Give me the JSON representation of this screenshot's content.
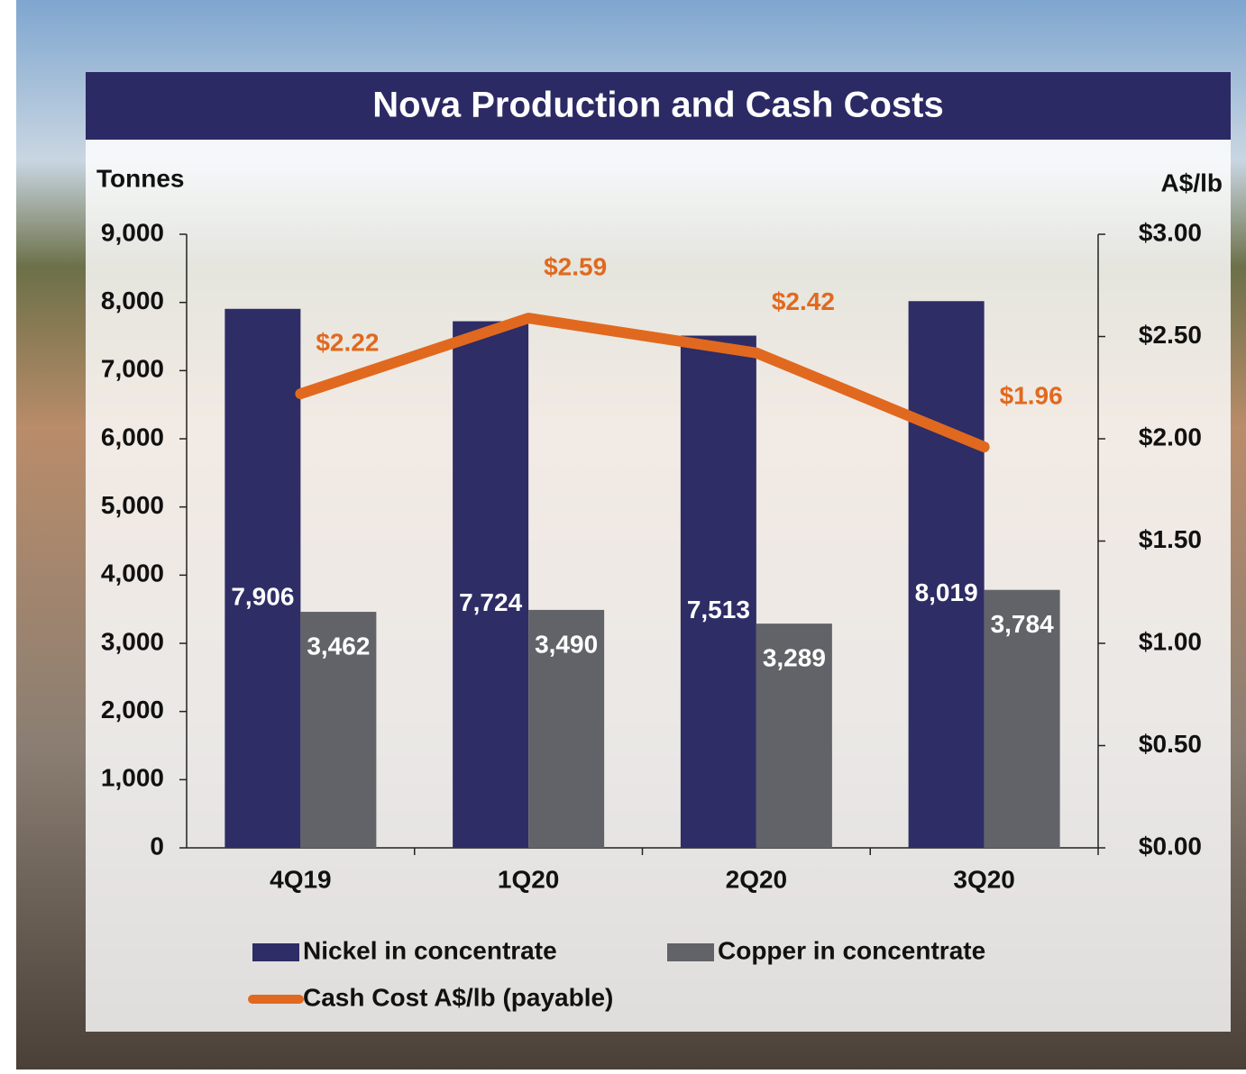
{
  "chart_data": {
    "type": "bar_line",
    "title": "Nova Production and Cash Costs",
    "y_axis_label": "Tonnes",
    "y2_axis_label": "A$/lb",
    "categories": [
      "4Q19",
      "1Q20",
      "2Q20",
      "3Q20"
    ],
    "series": [
      {
        "name": "Nickel in concentrate",
        "type": "bar",
        "color": "#2e2d66",
        "values": [
          7906,
          7724,
          7513,
          8019
        ],
        "value_labels": [
          "7,906",
          "7,724",
          "7,513",
          "8,019"
        ]
      },
      {
        "name": "Copper in concentrate",
        "type": "bar",
        "color": "#616368",
        "values": [
          3462,
          3490,
          3289,
          3784
        ],
        "value_labels": [
          "3,462",
          "3,490",
          "3,289",
          "3,784"
        ]
      },
      {
        "name": "Cash Cost A$/lb (payable)",
        "type": "line",
        "axis": "y2",
        "color": "#e0691f",
        "values": [
          2.22,
          2.59,
          2.42,
          1.96
        ],
        "value_labels": [
          "$2.22",
          "$2.59",
          "$2.42",
          "$1.96"
        ]
      }
    ],
    "ylim": [
      0,
      9000
    ],
    "yticks": [
      0,
      {
        "value": 1000,
        "label": "1,000"
      },
      {
        "value": 2000,
        "label": "2,000"
      },
      {
        "value": 3000,
        "label": "3,000"
      },
      {
        "value": 4000,
        "label": "4,000"
      },
      {
        "value": 5000,
        "label": "5,000"
      },
      {
        "value": 6000,
        "label": "6,000"
      },
      {
        "value": 7000,
        "label": "7,000"
      },
      {
        "value": 8000,
        "label": "8,000"
      },
      {
        "value": 9000,
        "label": "9,000"
      }
    ],
    "y2lim": [
      0,
      3
    ],
    "y2ticks": [
      {
        "value": 0,
        "label": "$0.00"
      },
      {
        "value": 0.5,
        "label": "$0.50"
      },
      {
        "value": 1,
        "label": "$1.00"
      },
      {
        "value": 1.5,
        "label": "$1.50"
      },
      {
        "value": 2,
        "label": "$2.00"
      },
      {
        "value": 2.5,
        "label": "$2.50"
      },
      {
        "value": 3,
        "label": "$3.00"
      }
    ]
  }
}
